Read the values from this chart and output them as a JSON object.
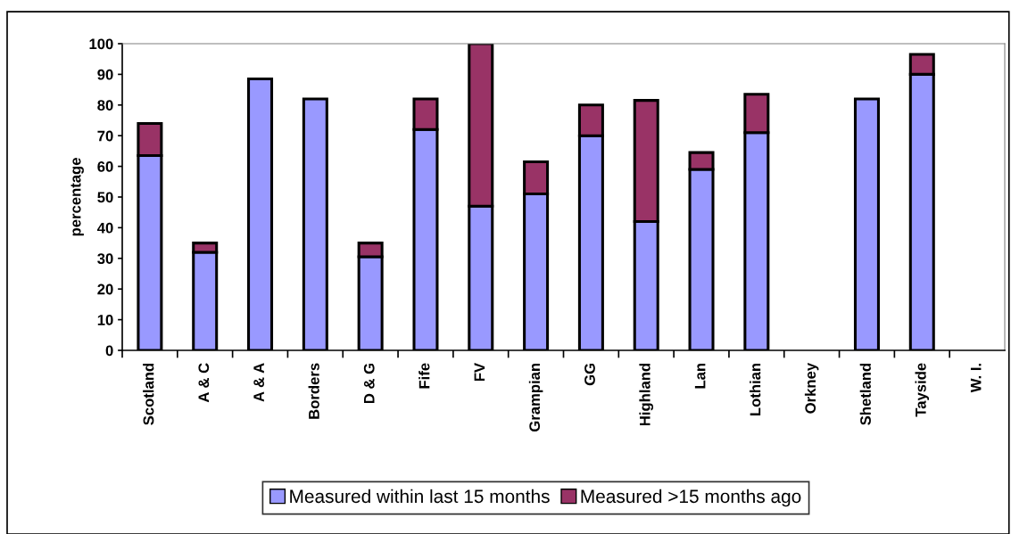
{
  "chart_data": {
    "type": "bar",
    "stacked": true,
    "ylabel": "percentage",
    "categories": [
      "Scotland",
      "A & C",
      "A & A",
      "Borders",
      "D & G",
      "Fife",
      "FV",
      "Grampian",
      "GG",
      "Highland",
      "Lan",
      "Lothian",
      "Orkney",
      "Shetland",
      "Tayside",
      "W. I."
    ],
    "series": [
      {
        "name": "Measured within last 15 months",
        "color": "#9999ff",
        "values": [
          63.5,
          32,
          88.5,
          82,
          30.5,
          72,
          47,
          51,
          70,
          42,
          59,
          71,
          null,
          82,
          90,
          null
        ]
      },
      {
        "name": "Measured >15 months ago",
        "color": "#993366",
        "values": [
          10.5,
          3,
          null,
          null,
          4.5,
          10,
          53,
          10.5,
          10,
          39.5,
          5.5,
          12.5,
          null,
          null,
          6.5,
          null
        ]
      }
    ],
    "ylim": [
      0,
      100
    ],
    "yticks": [
      0,
      10,
      20,
      30,
      40,
      50,
      60,
      70,
      80,
      90,
      100
    ],
    "grid": false,
    "legend": "bottom"
  }
}
